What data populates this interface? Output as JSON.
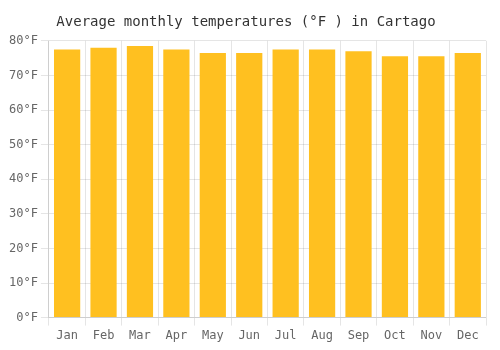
{
  "chart_data": {
    "type": "bar",
    "title": "Average monthly temperatures (°F ) in Cartago",
    "categories": [
      "Jan",
      "Feb",
      "Mar",
      "Apr",
      "May",
      "Jun",
      "Jul",
      "Aug",
      "Sep",
      "Oct",
      "Nov",
      "Dec"
    ],
    "values": [
      77.5,
      78.0,
      78.5,
      77.5,
      76.5,
      76.5,
      77.5,
      77.5,
      77.0,
      75.5,
      75.5,
      76.5
    ],
    "color": "#FFC020",
    "ylim": [
      0,
      80
    ],
    "yticks": [
      {
        "value": 0,
        "label": "0°F"
      },
      {
        "value": 10,
        "label": "10°F"
      },
      {
        "value": 20,
        "label": "20°F"
      },
      {
        "value": 30,
        "label": "30°F"
      },
      {
        "value": 40,
        "label": "40°F"
      },
      {
        "value": 50,
        "label": "50°F"
      },
      {
        "value": 60,
        "label": "60°F"
      },
      {
        "value": 70,
        "label": "70°F"
      },
      {
        "value": 80,
        "label": "80°F"
      }
    ],
    "grid": true
  }
}
